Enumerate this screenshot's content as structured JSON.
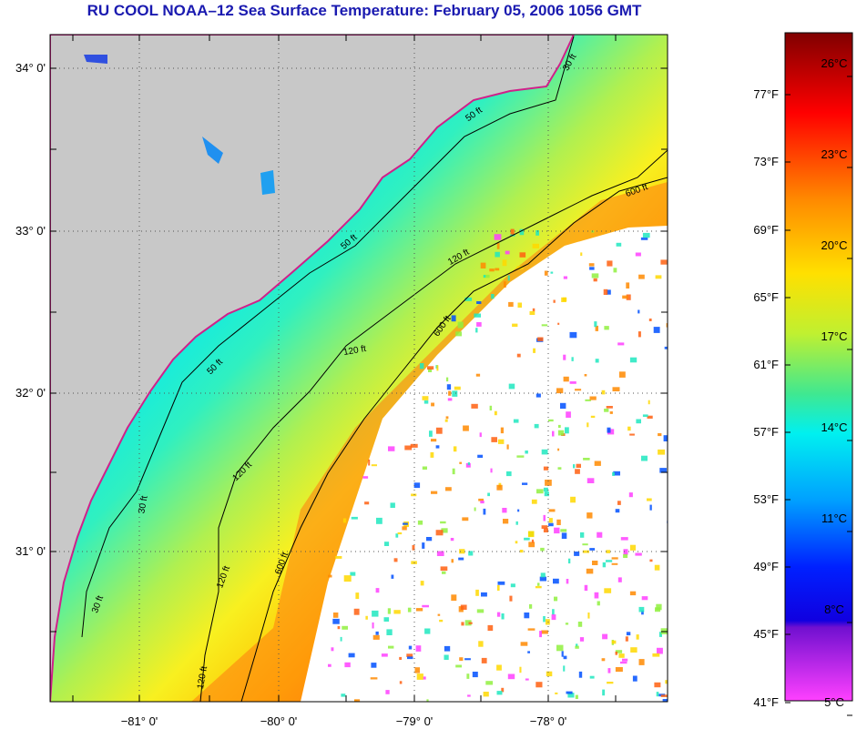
{
  "title": "RU COOL  NOAA–12  Sea Surface Temperature:  February 05, 2006 1056 GMT",
  "map": {
    "lat_labels": [
      "34° 0'",
      "33° 0'",
      "32° 0'",
      "31° 0'"
    ],
    "lon_labels": [
      "−81° 0'",
      "−80° 0'",
      "−79° 0'",
      "−78° 0'"
    ],
    "contour_labels": [
      "30 ft",
      "50 ft",
      "50 ft",
      "50 ft",
      "120 ft",
      "120 ft",
      "120 ft",
      "120 ft",
      "120 ft",
      "600 ft",
      "600 ft",
      "600 ft",
      "30 ft",
      "30 ft"
    ],
    "colors": {
      "land": "#c8c8c8",
      "cloud": "#ffffff",
      "coast": "#d0208a"
    }
  },
  "colorbar": {
    "fahrenheit_labels": [
      "77°F",
      "73°F",
      "69°F",
      "65°F",
      "61°F",
      "57°F",
      "53°F",
      "49°F",
      "45°F",
      "41°F"
    ],
    "celsius_labels": [
      "26°C",
      "23°C",
      "20°C",
      "17°C",
      "14°C",
      "11°C",
      "8°C",
      "5°C"
    ],
    "gradient": [
      "#8b0000",
      "#ff0000",
      "#ff8a00",
      "#ffd800",
      "#ffff20",
      "#90f040",
      "#20e8c0",
      "#00e0ff",
      "#0090ff",
      "#0000ff",
      "#8000c0",
      "#ff40ff"
    ]
  }
}
